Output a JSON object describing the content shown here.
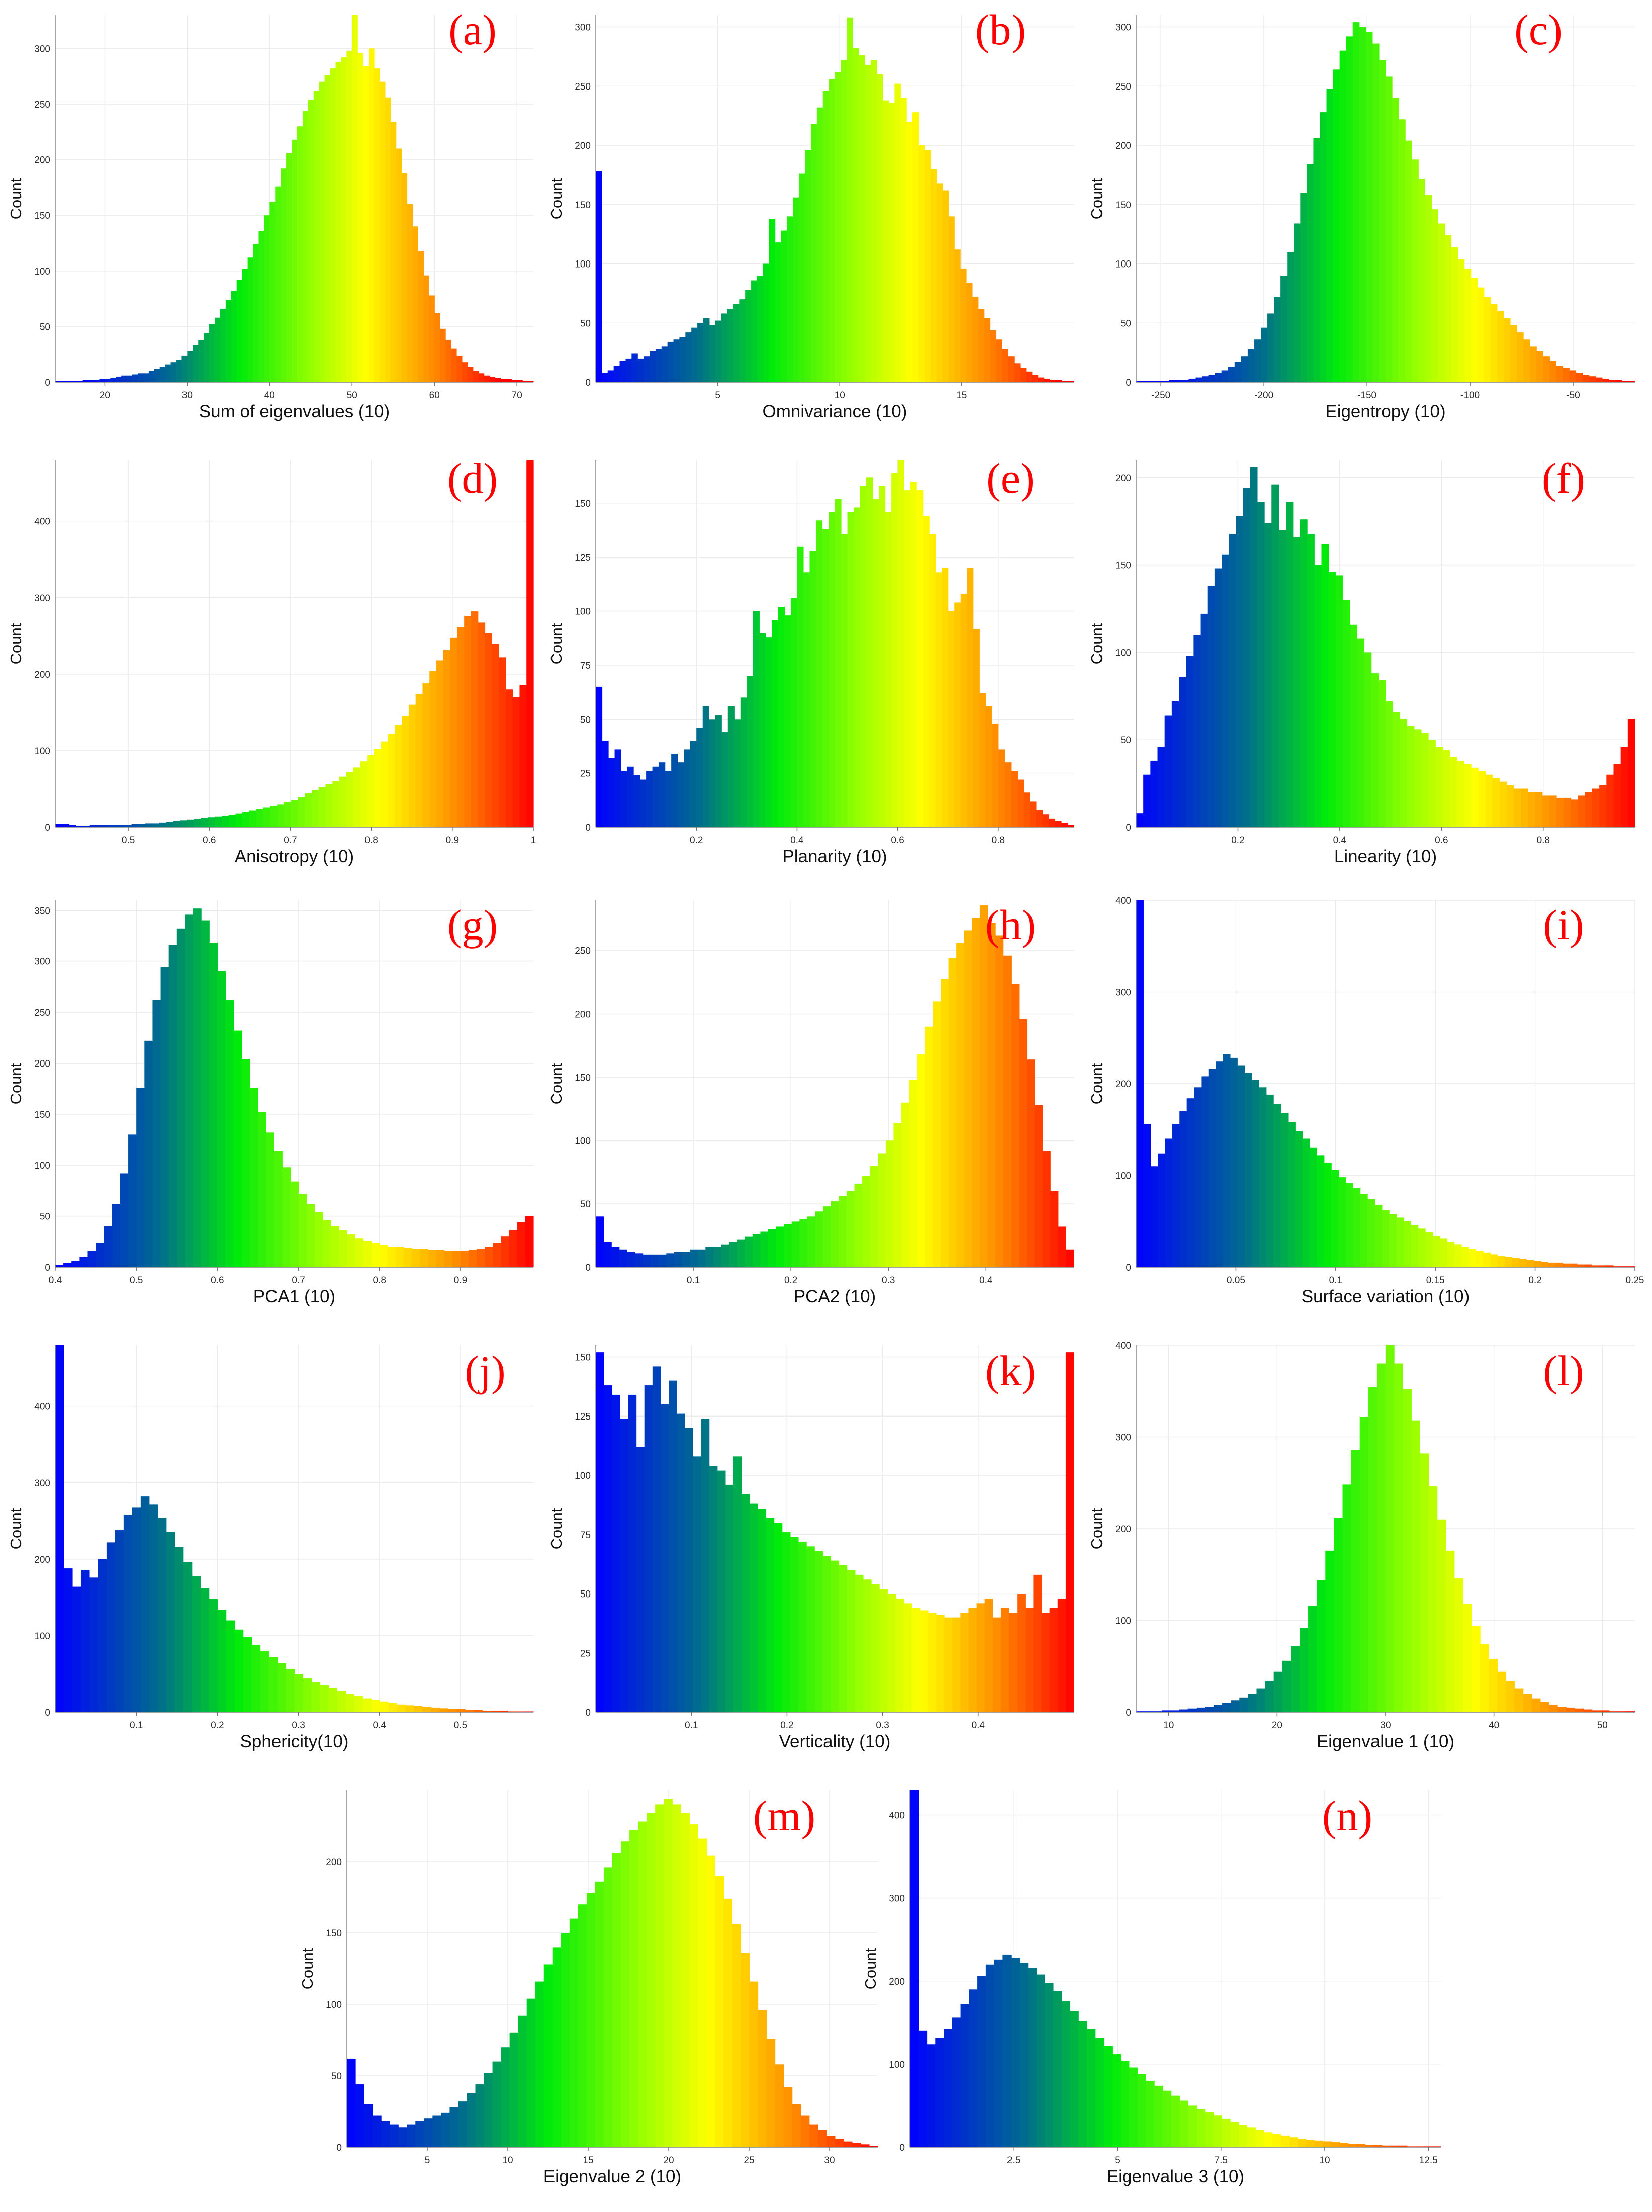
{
  "figure": {
    "count_label": "Count"
  },
  "chart_data": [
    {
      "type": "bar",
      "panel_label": "(a)",
      "title": "",
      "xlabel": "Sum of eigenvalues (10)",
      "ylabel": "Count",
      "xlim": [
        14,
        72
      ],
      "ylim": [
        0,
        330
      ],
      "xticks": [
        20,
        30,
        40,
        50,
        60,
        70
      ],
      "yticks": [
        0,
        50,
        100,
        150,
        200,
        250,
        300
      ],
      "color_range": [
        17,
        68
      ],
      "bin_edges": [
        14,
        72
      ],
      "values": [
        1,
        1,
        1,
        1,
        1,
        2,
        2,
        2,
        3,
        3,
        4,
        5,
        6,
        6,
        7,
        8,
        8,
        10,
        12,
        14,
        16,
        18,
        20,
        24,
        28,
        33,
        38,
        44,
        52,
        58,
        66,
        74,
        82,
        92,
        102,
        112,
        124,
        136,
        150,
        162,
        176,
        192,
        206,
        218,
        230,
        244,
        254,
        262,
        270,
        276,
        282,
        288,
        292,
        298,
        330,
        296,
        284,
        300,
        282,
        270,
        256,
        234,
        210,
        188,
        160,
        140,
        118,
        96,
        78,
        62,
        48,
        38,
        30,
        24,
        18,
        14,
        10,
        8,
        6,
        5,
        4,
        3,
        3,
        2,
        2,
        1,
        1
      ]
    },
    {
      "type": "bar",
      "panel_label": "(b)",
      "title": "",
      "xlabel": "Omnivariance (10)",
      "ylabel": "Count",
      "xlim": [
        0,
        19.6
      ],
      "ylim": [
        0,
        310
      ],
      "xticks": [
        5,
        10,
        15
      ],
      "yticks": [
        0,
        50,
        100,
        150,
        200,
        250,
        300
      ],
      "color_range": [
        0,
        19
      ],
      "values": [
        178,
        8,
        10,
        14,
        18,
        20,
        24,
        20,
        22,
        26,
        28,
        30,
        34,
        36,
        38,
        42,
        46,
        50,
        54,
        48,
        52,
        58,
        62,
        66,
        70,
        78,
        86,
        90,
        100,
        138,
        118,
        128,
        140,
        156,
        176,
        196,
        218,
        232,
        246,
        256,
        262,
        272,
        308,
        282,
        276,
        268,
        272,
        260,
        238,
        236,
        252,
        240,
        220,
        228,
        200,
        196,
        180,
        168,
        162,
        140,
        112,
        96,
        84,
        72,
        62,
        54,
        44,
        36,
        28,
        22,
        16,
        12,
        9,
        6,
        4,
        3,
        2,
        2,
        1,
        1
      ]
    },
    {
      "type": "bar",
      "panel_label": "(c)",
      "title": "",
      "xlabel": "Eigentropy (10)",
      "ylabel": "Count",
      "xlim": [
        -262,
        -20
      ],
      "ylim": [
        0,
        310
      ],
      "xticks": [
        -250,
        -200,
        -150,
        -100,
        -50
      ],
      "yticks": [
        0,
        50,
        100,
        150,
        200,
        250,
        300
      ],
      "color_range": [
        -250,
        -25
      ],
      "values": [
        1,
        1,
        1,
        1,
        1,
        2,
        2,
        2,
        3,
        4,
        5,
        6,
        8,
        10,
        13,
        17,
        22,
        28,
        36,
        46,
        58,
        72,
        90,
        110,
        134,
        160,
        184,
        206,
        228,
        248,
        264,
        280,
        292,
        304,
        300,
        296,
        286,
        272,
        258,
        240,
        222,
        204,
        188,
        172,
        158,
        146,
        134,
        124,
        114,
        104,
        96,
        88,
        80,
        72,
        66,
        60,
        54,
        48,
        42,
        36,
        30,
        26,
        22,
        18,
        14,
        12,
        10,
        8,
        6,
        5,
        4,
        3,
        2,
        2,
        1,
        1
      ]
    },
    {
      "type": "bar",
      "panel_label": "(d)",
      "title": "",
      "xlabel": "Anisotropy (10)",
      "ylabel": "Count",
      "xlim": [
        0.41,
        1.0
      ],
      "ylim": [
        0,
        480
      ],
      "xticks": [
        0.5,
        0.6,
        0.7,
        0.8,
        0.9,
        1
      ],
      "yticks": [
        0,
        100,
        200,
        300,
        400
      ],
      "color_range": [
        0.41,
        1.0
      ],
      "values": [
        4,
        4,
        3,
        2,
        2,
        3,
        3,
        3,
        3,
        3,
        3,
        4,
        4,
        5,
        5,
        6,
        7,
        8,
        9,
        10,
        11,
        12,
        13,
        14,
        15,
        16,
        18,
        20,
        22,
        24,
        26,
        28,
        30,
        33,
        36,
        40,
        44,
        48,
        52,
        56,
        60,
        66,
        72,
        78,
        86,
        94,
        102,
        112,
        122,
        134,
        146,
        160,
        174,
        188,
        204,
        218,
        232,
        248,
        262,
        276,
        282,
        268,
        254,
        240,
        222,
        180,
        170,
        186,
        480
      ]
    },
    {
      "type": "bar",
      "panel_label": "(e)",
      "title": "",
      "xlabel": "Planarity (10)",
      "ylabel": "Count",
      "xlim": [
        0,
        0.95
      ],
      "ylim": [
        0,
        170
      ],
      "xticks": [
        0.2,
        0.4,
        0.6,
        0.8
      ],
      "yticks": [
        0,
        25,
        50,
        75,
        100,
        125,
        150
      ],
      "color_range": [
        0,
        0.95
      ],
      "values": [
        65,
        40,
        32,
        36,
        26,
        28,
        24,
        22,
        26,
        28,
        30,
        26,
        34,
        30,
        36,
        40,
        46,
        56,
        50,
        52,
        44,
        56,
        50,
        60,
        70,
        100,
        90,
        88,
        96,
        102,
        98,
        106,
        130,
        118,
        128,
        142,
        138,
        146,
        152,
        136,
        146,
        148,
        158,
        162,
        152,
        158,
        146,
        164,
        172,
        156,
        160,
        156,
        144,
        136,
        118,
        120,
        100,
        104,
        108,
        120,
        92,
        62,
        56,
        48,
        36,
        30,
        26,
        22,
        16,
        12,
        8,
        6,
        4,
        3,
        2,
        1
      ]
    },
    {
      "type": "bar",
      "panel_label": "(f)",
      "title": "",
      "xlabel": "Linearity (10)",
      "ylabel": "Count",
      "xlim": [
        0,
        0.98
      ],
      "ylim": [
        0,
        210
      ],
      "xticks": [
        0.2,
        0.4,
        0.6,
        0.8
      ],
      "yticks": [
        0,
        50,
        100,
        150,
        200
      ],
      "color_range": [
        0,
        0.98
      ],
      "values": [
        8,
        30,
        38,
        46,
        64,
        72,
        86,
        98,
        110,
        122,
        138,
        148,
        156,
        168,
        178,
        194,
        206,
        186,
        174,
        196,
        170,
        186,
        166,
        176,
        168,
        150,
        162,
        146,
        144,
        130,
        116,
        108,
        100,
        88,
        84,
        72,
        66,
        62,
        58,
        56,
        54,
        50,
        46,
        44,
        40,
        38,
        36,
        34,
        32,
        30,
        28,
        26,
        24,
        22,
        22,
        20,
        20,
        18,
        18,
        17,
        17,
        16,
        18,
        20,
        22,
        24,
        30,
        36,
        46,
        62
      ]
    },
    {
      "type": "bar",
      "panel_label": "(g)",
      "title": "",
      "xlabel": "PCA1 (10)",
      "ylabel": "Count",
      "xlim": [
        0.4,
        0.99
      ],
      "ylim": [
        0,
        360
      ],
      "xticks": [
        0.4,
        0.5,
        0.6,
        0.7,
        0.8,
        0.9
      ],
      "yticks": [
        0,
        50,
        100,
        150,
        200,
        250,
        300,
        350
      ],
      "color_range": [
        0.4,
        0.99
      ],
      "values": [
        2,
        4,
        6,
        10,
        16,
        24,
        40,
        62,
        92,
        130,
        176,
        222,
        262,
        294,
        316,
        332,
        346,
        352,
        340,
        318,
        290,
        262,
        232,
        204,
        176,
        152,
        132,
        114,
        98,
        84,
        72,
        62,
        54,
        46,
        40,
        36,
        32,
        28,
        26,
        24,
        22,
        20,
        20,
        19,
        18,
        18,
        17,
        17,
        16,
        16,
        16,
        17,
        18,
        20,
        24,
        30,
        36,
        44,
        50
      ]
    },
    {
      "type": "bar",
      "panel_label": "(h)",
      "title": "",
      "xlabel": "PCA2 (10)",
      "ylabel": "Count",
      "xlim": [
        0,
        0.49
      ],
      "ylim": [
        0,
        290
      ],
      "xticks": [
        0.1,
        0.2,
        0.3,
        0.4
      ],
      "yticks": [
        0,
        50,
        100,
        150,
        200,
        250
      ],
      "color_range": [
        0,
        0.49
      ],
      "values": [
        40,
        20,
        16,
        14,
        12,
        11,
        10,
        10,
        10,
        11,
        12,
        12,
        14,
        14,
        16,
        16,
        18,
        20,
        22,
        24,
        26,
        28,
        30,
        32,
        34,
        36,
        38,
        40,
        44,
        48,
        52,
        56,
        60,
        66,
        72,
        80,
        90,
        100,
        114,
        130,
        148,
        168,
        190,
        210,
        228,
        244,
        256,
        266,
        276,
        286,
        272,
        262,
        246,
        224,
        196,
        164,
        128,
        92,
        60,
        32,
        14
      ]
    },
    {
      "type": "bar",
      "panel_label": "(i)",
      "title": "",
      "xlabel": "Surface variation (10)",
      "ylabel": "Count",
      "xlim": [
        0,
        0.25
      ],
      "ylim": [
        0,
        400
      ],
      "xticks": [
        0.05,
        0.1,
        0.15,
        0.2,
        0.25
      ],
      "yticks": [
        0,
        100,
        200,
        300,
        400
      ],
      "color_range": [
        0,
        0.25
      ],
      "values": [
        400,
        156,
        110,
        124,
        140,
        156,
        170,
        184,
        196,
        208,
        216,
        224,
        232,
        228,
        220,
        212,
        204,
        196,
        188,
        178,
        168,
        158,
        148,
        140,
        130,
        122,
        114,
        106,
        98,
        92,
        86,
        80,
        74,
        68,
        62,
        58,
        54,
        50,
        46,
        42,
        38,
        34,
        31,
        28,
        25,
        22,
        20,
        18,
        16,
        14,
        12,
        11,
        10,
        9,
        8,
        7,
        6,
        5,
        5,
        4,
        4,
        3,
        3,
        2,
        2,
        2,
        1,
        1,
        1
      ]
    },
    {
      "type": "bar",
      "panel_label": "(j)",
      "title": "",
      "xlabel": "Sphericity(10)",
      "ylabel": "Count",
      "xlim": [
        0,
        0.59
      ],
      "ylim": [
        0,
        480
      ],
      "xticks": [
        0.1,
        0.2,
        0.3,
        0.4,
        0.5
      ],
      "yticks": [
        0,
        100,
        200,
        300,
        400
      ],
      "color_range": [
        0,
        0.59
      ],
      "values": [
        480,
        188,
        164,
        186,
        176,
        200,
        222,
        238,
        258,
        268,
        282,
        272,
        254,
        236,
        216,
        196,
        178,
        162,
        148,
        134,
        120,
        108,
        98,
        88,
        80,
        72,
        64,
        56,
        50,
        44,
        40,
        36,
        32,
        28,
        24,
        21,
        18,
        16,
        14,
        12,
        10,
        9,
        8,
        7,
        6,
        5,
        4,
        4,
        3,
        3,
        2,
        2,
        2,
        1,
        1,
        1
      ]
    },
    {
      "type": "bar",
      "panel_label": "(k)",
      "title": "",
      "xlabel": "Verticality (10)",
      "ylabel": "Count",
      "xlim": [
        0,
        0.5
      ],
      "ylim": [
        0,
        155
      ],
      "xticks": [
        0.1,
        0.2,
        0.3,
        0.4
      ],
      "yticks": [
        0,
        25,
        50,
        75,
        100,
        125,
        150
      ],
      "color_range": [
        0,
        0.5
      ],
      "values": [
        152,
        138,
        134,
        124,
        134,
        112,
        138,
        146,
        130,
        140,
        126,
        120,
        108,
        124,
        104,
        102,
        96,
        108,
        92,
        88,
        86,
        82,
        80,
        76,
        74,
        72,
        70,
        68,
        66,
        64,
        62,
        60,
        58,
        56,
        54,
        52,
        50,
        48,
        46,
        44,
        43,
        42,
        41,
        40,
        40,
        42,
        44,
        46,
        48,
        40,
        44,
        42,
        50,
        44,
        58,
        42,
        44,
        48,
        152
      ]
    },
    {
      "type": "bar",
      "panel_label": "(l)",
      "title": "",
      "xlabel": "Eigenvalue 1 (10)",
      "ylabel": "Count",
      "xlim": [
        7,
        53
      ],
      "ylim": [
        0,
        400
      ],
      "xticks": [
        10,
        20,
        30,
        40,
        50
      ],
      "yticks": [
        0,
        100,
        200,
        300,
        400
      ],
      "color_range": [
        7,
        53
      ],
      "values": [
        1,
        1,
        1,
        2,
        2,
        3,
        4,
        5,
        6,
        8,
        10,
        13,
        16,
        20,
        26,
        34,
        44,
        56,
        72,
        92,
        116,
        144,
        176,
        212,
        248,
        286,
        322,
        354,
        380,
        400,
        380,
        352,
        318,
        282,
        246,
        210,
        176,
        146,
        118,
        94,
        74,
        58,
        44,
        34,
        26,
        20,
        15,
        11,
        8,
        6,
        5,
        4,
        3,
        2,
        2,
        1,
        1,
        1
      ]
    },
    {
      "type": "bar",
      "panel_label": "(m)",
      "title": "",
      "xlabel": "Eigenvalue 2 (10)",
      "ylabel": "Count",
      "xlim": [
        0,
        33
      ],
      "ylim": [
        0,
        250
      ],
      "xticks": [
        5,
        10,
        15,
        20,
        25,
        30
      ],
      "yticks": [
        0,
        50,
        100,
        150,
        200
      ],
      "color_range": [
        0,
        33
      ],
      "values": [
        62,
        44,
        30,
        22,
        18,
        16,
        14,
        16,
        18,
        20,
        22,
        24,
        28,
        32,
        38,
        44,
        52,
        60,
        70,
        80,
        92,
        104,
        116,
        128,
        140,
        150,
        160,
        170,
        178,
        186,
        196,
        206,
        214,
        222,
        228,
        234,
        240,
        244,
        240,
        234,
        226,
        216,
        204,
        190,
        174,
        156,
        136,
        116,
        96,
        76,
        58,
        42,
        30,
        22,
        16,
        12,
        8,
        6,
        4,
        3,
        2,
        1
      ]
    },
    {
      "type": "bar",
      "panel_label": "(n)",
      "title": "",
      "xlabel": "Eigenvalue 3 (10)",
      "ylabel": "Count",
      "xlim": [
        0,
        12.8
      ],
      "ylim": [
        0,
        430
      ],
      "xticks": [
        2.5,
        5,
        7.5,
        10,
        12.5
      ],
      "yticks": [
        0,
        100,
        200,
        300,
        400
      ],
      "color_range": [
        0,
        12.8
      ],
      "values": [
        430,
        140,
        124,
        132,
        142,
        156,
        172,
        190,
        206,
        220,
        226,
        232,
        228,
        222,
        216,
        208,
        198,
        188,
        176,
        164,
        152,
        142,
        132,
        122,
        112,
        104,
        96,
        88,
        80,
        74,
        68,
        62,
        56,
        50,
        46,
        42,
        38,
        34,
        30,
        27,
        24,
        21,
        18,
        16,
        14,
        12,
        10,
        9,
        8,
        7,
        6,
        5,
        4,
        4,
        3,
        3,
        2,
        2,
        2,
        1,
        1,
        1,
        1
      ]
    }
  ]
}
